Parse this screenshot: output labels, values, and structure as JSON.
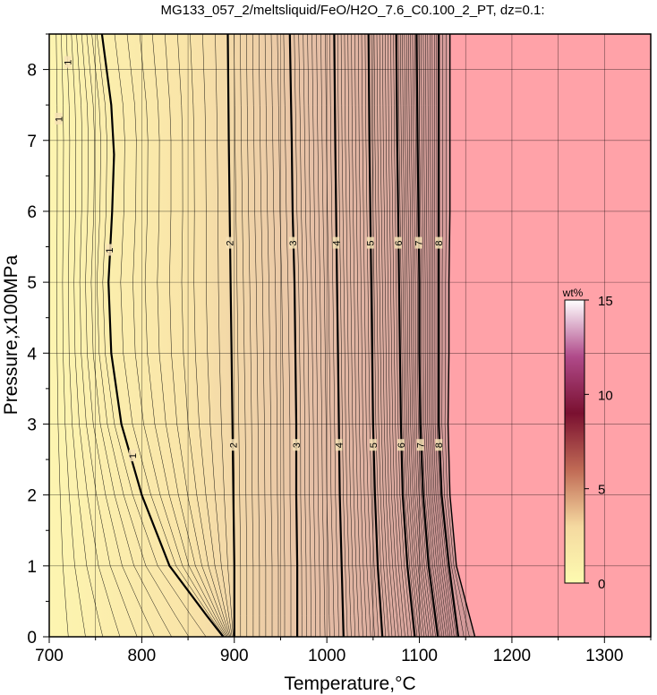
{
  "chart_data": {
    "type": "contour",
    "title": "MG133_057_2/meltsliquid/FeO/H2O_7.6_C0.100_2_PT, dz=0.1:",
    "xlabel": "Temperature,°C",
    "ylabel": "Pressure,x100MPa",
    "xlim": [
      700,
      1350
    ],
    "ylim": [
      0,
      8.5
    ],
    "xticks": [
      "700",
      "800",
      "900",
      "1000",
      "1100",
      "1200",
      "1300"
    ],
    "yticks": [
      "0",
      "1",
      "2",
      "3",
      "4",
      "5",
      "6",
      "7",
      "8"
    ],
    "grid": true,
    "background_colors": {
      "low": "#fdf5b0",
      "high": "#d49a9a",
      "no_melt": "#ffa2a8"
    },
    "colorbar": {
      "label": "wt%",
      "ticks": [
        "0",
        "5",
        "10",
        "15"
      ],
      "range": [
        0,
        15
      ],
      "colors": [
        "#fdfbb0",
        "#f5d9a0",
        "#c06a55",
        "#7a1030",
        "#b04a8a",
        "#ffffff"
      ]
    },
    "contour_interval": 0.1,
    "major_contours": [
      {
        "label": "1",
        "points": [
          [
            757,
            8.5
          ],
          [
            767,
            7.5
          ],
          [
            770,
            6.8
          ],
          [
            768,
            6.0
          ],
          [
            764,
            5.0
          ],
          [
            767,
            4.0
          ],
          [
            778,
            3.0
          ],
          [
            800,
            2.0
          ],
          [
            830,
            1.0
          ],
          [
            870,
            0.3
          ],
          [
            888,
            0
          ]
        ]
      },
      {
        "label": "2",
        "points": [
          [
            893,
            8.5
          ],
          [
            894,
            7.0
          ],
          [
            895,
            6.0
          ],
          [
            896,
            5.0
          ],
          [
            897,
            4.0
          ],
          [
            898,
            3.0
          ],
          [
            899,
            2.0
          ],
          [
            900,
            1.0
          ],
          [
            900,
            0
          ]
        ]
      },
      {
        "label": "3",
        "points": [
          [
            960,
            8.5
          ],
          [
            962,
            7.0
          ],
          [
            963,
            6.0
          ],
          [
            965,
            5.0
          ],
          [
            966,
            4.0
          ],
          [
            967,
            3.0
          ],
          [
            967,
            2.0
          ],
          [
            968,
            1.0
          ],
          [
            968,
            0
          ]
        ]
      },
      {
        "label": "4",
        "points": [
          [
            1008,
            8.5
          ],
          [
            1009,
            7.0
          ],
          [
            1010,
            6.0
          ],
          [
            1011,
            5.0
          ],
          [
            1012,
            4.0
          ],
          [
            1013,
            3.0
          ],
          [
            1014,
            2.0
          ],
          [
            1016,
            1.0
          ],
          [
            1018,
            0
          ]
        ]
      },
      {
        "label": "5",
        "points": [
          [
            1045,
            8.5
          ],
          [
            1046,
            7.0
          ],
          [
            1047,
            6.0
          ],
          [
            1048,
            5.0
          ],
          [
            1049,
            4.0
          ],
          [
            1050,
            3.0
          ],
          [
            1052,
            2.0
          ],
          [
            1055,
            1.0
          ],
          [
            1060,
            0
          ]
        ]
      },
      {
        "label": "6",
        "points": [
          [
            1075,
            8.5
          ],
          [
            1076,
            7.0
          ],
          [
            1077,
            6.0
          ],
          [
            1078,
            5.0
          ],
          [
            1079,
            4.0
          ],
          [
            1080,
            3.0
          ],
          [
            1082,
            2.0
          ],
          [
            1087,
            1.0
          ],
          [
            1095,
            0
          ]
        ]
      },
      {
        "label": "7",
        "points": [
          [
            1097,
            8.5
          ],
          [
            1098,
            7.0
          ],
          [
            1099,
            6.0
          ],
          [
            1100,
            5.0
          ],
          [
            1100,
            4.0
          ],
          [
            1101,
            3.0
          ],
          [
            1104,
            2.0
          ],
          [
            1110,
            1.0
          ],
          [
            1120,
            0
          ]
        ]
      },
      {
        "label": "8",
        "points": [
          [
            1121,
            8.5
          ],
          [
            1121,
            7.0
          ],
          [
            1121,
            6.0
          ],
          [
            1121,
            5.0
          ],
          [
            1121,
            4.0
          ],
          [
            1121,
            3.0
          ],
          [
            1124,
            2.0
          ],
          [
            1132,
            1.0
          ],
          [
            1142,
            0
          ]
        ]
      }
    ],
    "melt_boundary": [
      [
        1133,
        8.5
      ],
      [
        1133,
        7.0
      ],
      [
        1133,
        6.0
      ],
      [
        1132,
        5.0
      ],
      [
        1132,
        4.0
      ],
      [
        1131,
        3.0
      ],
      [
        1133,
        2.0
      ],
      [
        1140,
        1.0
      ],
      [
        1160,
        0
      ]
    ],
    "inline_labels": [
      {
        "text": "1",
        "x": 720,
        "y": 8.1
      },
      {
        "text": "1",
        "x": 710,
        "y": 7.3
      },
      {
        "text": "1",
        "x": 765,
        "y": 5.45
      },
      {
        "text": "1",
        "x": 790,
        "y": 2.55
      },
      {
        "text": "2",
        "x": 895,
        "y": 5.55
      },
      {
        "text": "2",
        "x": 899,
        "y": 2.7
      },
      {
        "text": "3",
        "x": 963,
        "y": 5.55
      },
      {
        "text": "3",
        "x": 967,
        "y": 2.7
      },
      {
        "text": "4",
        "x": 1010,
        "y": 5.55
      },
      {
        "text": "4",
        "x": 1013,
        "y": 2.7
      },
      {
        "text": "5",
        "x": 1047,
        "y": 5.55
      },
      {
        "text": "5",
        "x": 1050,
        "y": 2.7
      },
      {
        "text": "6",
        "x": 1077,
        "y": 5.55
      },
      {
        "text": "6",
        "x": 1080,
        "y": 2.7
      },
      {
        "text": "7",
        "x": 1099,
        "y": 5.55
      },
      {
        "text": "7",
        "x": 1101,
        "y": 2.7
      },
      {
        "text": "8",
        "x": 1121,
        "y": 5.55
      },
      {
        "text": "8",
        "x": 1121,
        "y": 2.7
      }
    ]
  }
}
